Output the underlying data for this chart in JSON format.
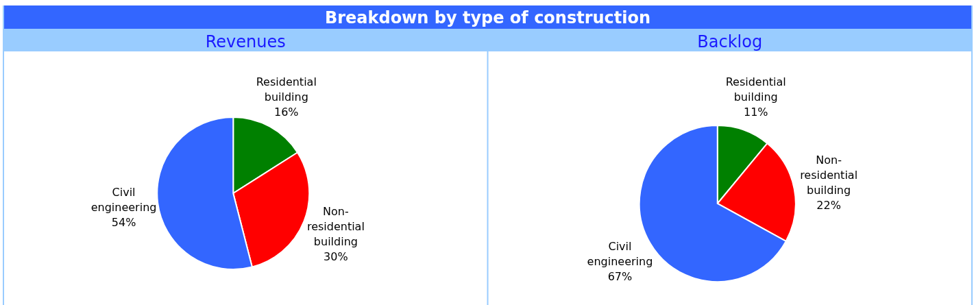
{
  "chart_data": [
    {
      "type": "pie",
      "title": "Breakdown by type of construction",
      "subtitle": "Revenues",
      "categories": [
        "Residential building",
        "Non-residential building",
        "Civil engineering"
      ],
      "values": [
        16,
        30,
        54
      ],
      "value_labels": [
        "16%",
        "30%",
        "54%"
      ],
      "colors": [
        "#008000",
        "#ff0000",
        "#3366ff"
      ]
    },
    {
      "type": "pie",
      "subtitle": "Backlog",
      "categories": [
        "Residential building",
        "Non-residential building",
        "Civil engineering"
      ],
      "values": [
        11,
        22,
        67
      ],
      "value_labels": [
        "11%",
        "22%",
        "67%"
      ],
      "colors": [
        "#008000",
        "#ff0000",
        "#3366ff"
      ]
    }
  ]
}
